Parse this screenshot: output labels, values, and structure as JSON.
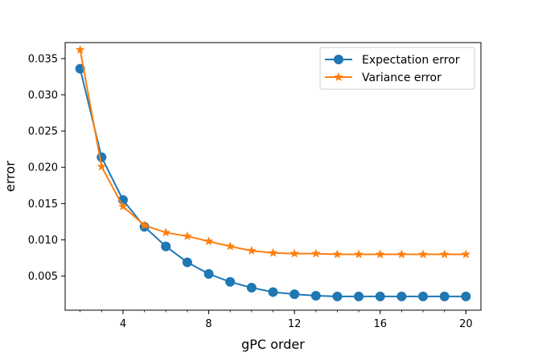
{
  "chart_data": {
    "type": "line",
    "title": "",
    "xlabel": "gPC order",
    "ylabel": "error",
    "xlim": [
      1.3,
      20.7
    ],
    "ylim": [
      0.0003,
      0.0372
    ],
    "xticks": [
      4,
      8,
      12,
      16,
      20
    ],
    "xtick_labels": [
      "4",
      "8",
      "12",
      "16",
      "20"
    ],
    "x_minor_ticks": [
      2,
      3,
      4,
      5,
      6,
      7,
      8,
      9,
      10,
      11,
      12,
      13,
      14,
      15,
      16,
      17,
      18,
      19,
      20
    ],
    "yticks": [
      0.005,
      0.01,
      0.015,
      0.02,
      0.025,
      0.03,
      0.035
    ],
    "ytick_labels": [
      "0.005",
      "0.010",
      "0.015",
      "0.020",
      "0.025",
      "0.030",
      "0.035"
    ],
    "grid": false,
    "legend_position": "top-right",
    "x": [
      2,
      3,
      4,
      5,
      6,
      7,
      8,
      9,
      10,
      11,
      12,
      13,
      14,
      15,
      16,
      17,
      18,
      19,
      20
    ],
    "series": [
      {
        "name": "Expectation error",
        "color": "#1f77b4",
        "marker": "circle",
        "values": [
          0.0336,
          0.0214,
          0.0155,
          0.0118,
          0.0091,
          0.0069,
          0.0053,
          0.0042,
          0.0034,
          0.0028,
          0.0025,
          0.0023,
          0.0022,
          0.0022,
          0.0022,
          0.0022,
          0.0022,
          0.0022,
          0.0022
        ]
      },
      {
        "name": "Variance error",
        "color": "#ff7f0e",
        "marker": "star",
        "values": [
          0.0362,
          0.0201,
          0.0146,
          0.012,
          0.011,
          0.0105,
          0.0098,
          0.0091,
          0.0085,
          0.0082,
          0.0081,
          0.0081,
          0.008,
          0.008,
          0.008,
          0.008,
          0.008,
          0.008,
          0.008
        ]
      }
    ]
  }
}
